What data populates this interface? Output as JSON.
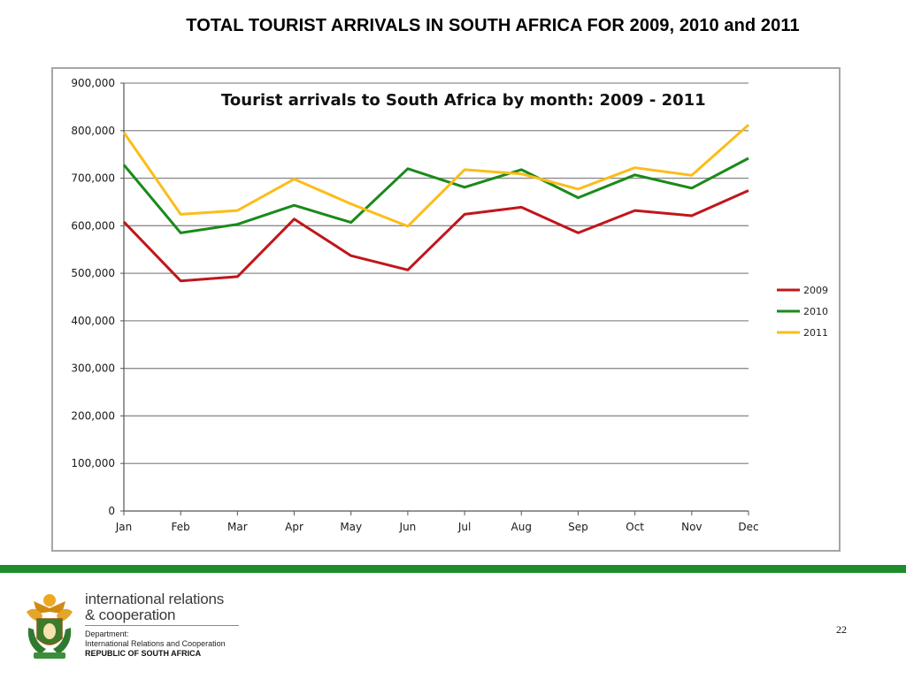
{
  "slide": {
    "title": "TOTAL TOURIST ARRIVALS IN SOUTH AFRICA FOR 2009, 2010 and 2011",
    "page_number": "22"
  },
  "footer": {
    "org_line_1": "international relations",
    "org_line_2": "& cooperation",
    "dept_label": "Department:",
    "dept_name": "International Relations and Cooperation",
    "country": "REPUBLIC OF SOUTH AFRICA",
    "band_color": "#1e8c2c"
  },
  "chart_data": {
    "type": "line",
    "title": "Tourist arrivals to South Africa by month:  2009 - 2011",
    "xlabel": "",
    "ylabel": "",
    "categories": [
      "Jan",
      "Feb",
      "Mar",
      "Apr",
      "May",
      "Jun",
      "Jul",
      "Aug",
      "Sep",
      "Oct",
      "Nov",
      "Dec"
    ],
    "ylim": [
      0,
      900000
    ],
    "yticks": [
      0,
      100000,
      200000,
      300000,
      400000,
      500000,
      600000,
      700000,
      800000,
      900000
    ],
    "ytick_labels": [
      "0",
      "100,000",
      "200,000",
      "300,000",
      "400,000",
      "500,000",
      "600,000",
      "700,000",
      "800,000",
      "900,000"
    ],
    "grid": true,
    "legend_position": "right",
    "series": [
      {
        "name": "2009",
        "color": "#c0161b",
        "values": [
          608000,
          484000,
          493000,
          614000,
          537000,
          507000,
          624000,
          639000,
          585000,
          632000,
          621000,
          674000
        ]
      },
      {
        "name": "2010",
        "color": "#1a8a1a",
        "values": [
          728000,
          585000,
          603000,
          643000,
          607000,
          720000,
          681000,
          718000,
          659000,
          707000,
          679000,
          742000
        ]
      },
      {
        "name": "2011",
        "color": "#fbbd1a",
        "values": [
          796000,
          624000,
          632000,
          698000,
          646000,
          599000,
          718000,
          709000,
          677000,
          722000,
          706000,
          812000
        ]
      }
    ]
  }
}
